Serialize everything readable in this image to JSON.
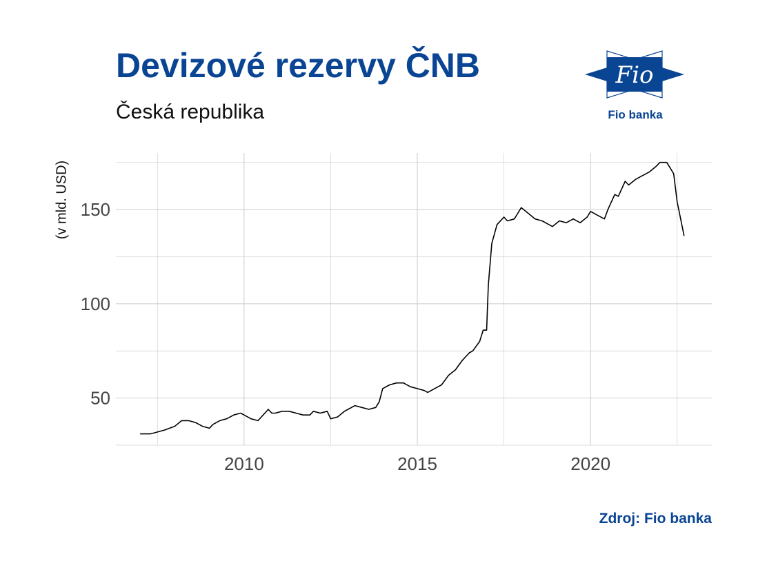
{
  "header": {
    "title": "Devizové rezervy ČNB",
    "subtitle": "Česká republika"
  },
  "logo": {
    "name": "fio-logo-icon",
    "mark_text": "Fio",
    "caption": "Fio banka",
    "color": "#0a4594"
  },
  "footer": {
    "source": "Zdroj: Fio banka"
  },
  "colors": {
    "title": "#0a4594",
    "line": "#000000",
    "grid": "#d0d0d0",
    "tick_text": "#444444"
  },
  "chart_data": {
    "type": "line",
    "title": "Devizové rezervy ČNB",
    "subtitle": "Česká republika",
    "xlabel": "",
    "ylabel": "(v mld. USD)",
    "xlim": [
      2006.3,
      2023.5
    ],
    "ylim": [
      25,
      180
    ],
    "x_ticks": [
      2010,
      2015,
      2020
    ],
    "x_tick_labels": [
      "2010",
      "2015",
      "2020"
    ],
    "y_ticks": [
      50,
      100,
      150
    ],
    "y_tick_labels": [
      "50",
      "100",
      "150"
    ],
    "grid": true,
    "legend": "none",
    "series": [
      {
        "x": [
          2007.0,
          2007.3,
          2007.5,
          2007.7,
          2008.0,
          2008.2,
          2008.4,
          2008.6,
          2008.8,
          2009.0,
          2009.1,
          2009.3,
          2009.5,
          2009.7,
          2009.9,
          2010.0,
          2010.2,
          2010.4,
          2010.5,
          2010.7,
          2010.8,
          2010.9,
          2011.1,
          2011.3,
          2011.5,
          2011.7,
          2011.9,
          2012.0,
          2012.2,
          2012.4,
          2012.5,
          2012.7,
          2012.9,
          2013.0,
          2013.2,
          2013.4,
          2013.6,
          2013.8,
          2013.9,
          2014.0,
          2014.2,
          2014.4,
          2014.6,
          2014.8,
          2015.0,
          2015.2,
          2015.3,
          2015.5,
          2015.7,
          2015.9,
          2016.1,
          2016.3,
          2016.5,
          2016.6,
          2016.8,
          2016.9,
          2017.0,
          2017.05,
          2017.15,
          2017.3,
          2017.5,
          2017.6,
          2017.8,
          2017.9,
          2018.0,
          2018.2,
          2018.4,
          2018.6,
          2018.8,
          2018.9,
          2019.1,
          2019.3,
          2019.5,
          2019.7,
          2019.9,
          2020.0,
          2020.2,
          2020.4,
          2020.5,
          2020.7,
          2020.8,
          2021.0,
          2021.1,
          2021.3,
          2021.5,
          2021.7,
          2021.9,
          2022.0,
          2022.2,
          2022.4,
          2022.5,
          2022.6,
          2022.7
        ],
        "y": [
          31,
          31,
          32,
          33,
          35,
          38,
          38,
          37,
          35,
          34,
          36,
          38,
          39,
          41,
          42,
          41,
          39,
          38,
          40,
          44,
          42,
          42,
          43,
          43,
          42,
          41,
          41,
          43,
          42,
          43,
          39,
          40,
          43,
          44,
          46,
          45,
          44,
          45,
          48,
          55,
          57,
          58,
          58,
          56,
          55,
          54,
          53,
          55,
          57,
          62,
          65,
          70,
          74,
          75,
          80,
          86,
          86,
          110,
          132,
          142,
          146,
          144,
          145,
          148,
          151,
          148,
          145,
          144,
          142,
          141,
          144,
          143,
          145,
          143,
          146,
          149,
          147,
          145,
          150,
          158,
          157,
          165,
          163,
          166,
          168,
          170,
          173,
          175,
          175,
          169,
          154,
          145,
          136
        ]
      }
    ]
  }
}
